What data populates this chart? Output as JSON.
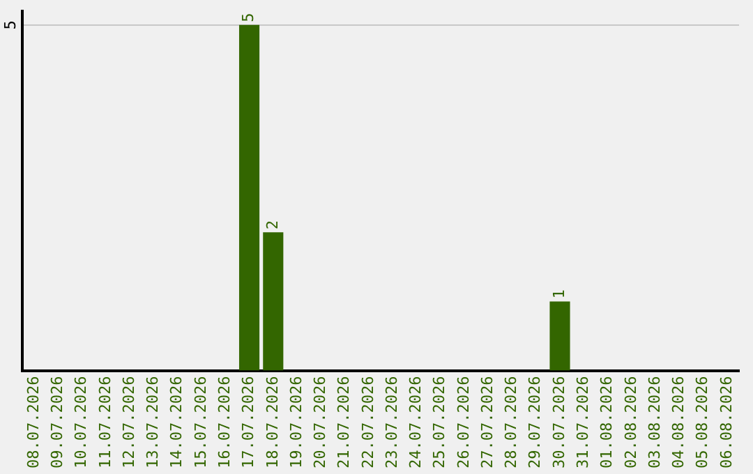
{
  "chart_data": {
    "type": "bar",
    "categories": [
      "08.07.2026",
      "09.07.2026",
      "10.07.2026",
      "11.07.2026",
      "12.07.2026",
      "13.07.2026",
      "14.07.2026",
      "15.07.2026",
      "16.07.2026",
      "17.07.2026",
      "18.07.2026",
      "19.07.2026",
      "20.07.2026",
      "21.07.2026",
      "22.07.2026",
      "23.07.2026",
      "24.07.2026",
      "25.07.2026",
      "26.07.2026",
      "27.07.2026",
      "28.07.2026",
      "29.07.2026",
      "30.07.2026",
      "31.07.2026",
      "01.08.2026",
      "02.08.2026",
      "03.08.2026",
      "04.08.2026",
      "05.08.2026",
      "06.08.2026"
    ],
    "values": [
      0,
      0,
      0,
      0,
      0,
      0,
      0,
      0,
      0,
      5,
      2,
      0,
      0,
      0,
      0,
      0,
      0,
      0,
      0,
      0,
      0,
      0,
      1,
      0,
      0,
      0,
      0,
      0,
      0,
      0
    ],
    "value_labels": [
      null,
      null,
      null,
      null,
      null,
      null,
      null,
      null,
      null,
      "5",
      "2",
      null,
      null,
      null,
      null,
      null,
      null,
      null,
      null,
      null,
      null,
      null,
      "1",
      null,
      null,
      null,
      null,
      null,
      null,
      null
    ],
    "color": "#336600",
    "ylim": [
      0,
      5.2
    ],
    "yticks": [
      5
    ],
    "grid": "y",
    "legend": false
  }
}
